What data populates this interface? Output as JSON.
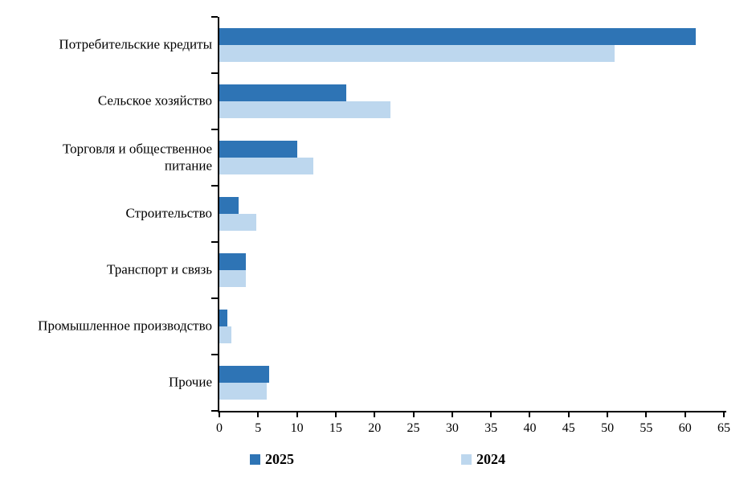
{
  "chart_data": {
    "type": "bar",
    "orientation": "horizontal",
    "title": "",
    "xlabel": "",
    "ylabel": "",
    "categories": [
      "Потребительские  кредиты",
      "Сельское хозяйство",
      "Торговля и общественное\nпитание",
      "Строительство",
      "Транспорт и связь",
      "Промышленное производство",
      "Прочие"
    ],
    "series": [
      {
        "name": "2025",
        "color": "#2E74B5",
        "values": [
          61.4,
          16.4,
          10.0,
          2.5,
          3.4,
          1.0,
          6.4
        ]
      },
      {
        "name": "2024",
        "color": "#BDD7EE",
        "values": [
          50.9,
          22.0,
          12.1,
          4.8,
          3.4,
          1.6,
          6.1
        ]
      }
    ],
    "xlim": [
      0,
      65
    ],
    "xticks": [
      0,
      5,
      10,
      15,
      20,
      25,
      30,
      35,
      40,
      45,
      50,
      55,
      60,
      65
    ],
    "grid": false,
    "legend_position": "bottom",
    "axis_color": "#000000",
    "text_color": "#000000",
    "background_color": "#ffffff"
  }
}
